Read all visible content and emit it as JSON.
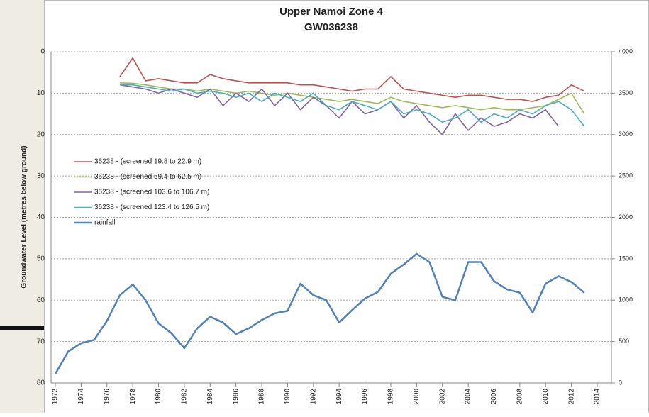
{
  "chart_data": {
    "type": "line",
    "title": [
      "Upper Namoi Zone 4",
      "GW036238"
    ],
    "y_label": "Groundwater Level (metres below ground)",
    "xlim": [
      1972,
      2014
    ],
    "xticks": [
      1972,
      1974,
      1976,
      1978,
      1980,
      1982,
      1984,
      1986,
      1988,
      1990,
      1992,
      1994,
      1996,
      1998,
      2000,
      2002,
      2004,
      2006,
      2008,
      2010,
      2012,
      2014
    ],
    "ylim": [
      80,
      0
    ],
    "yticks": [
      0,
      10,
      20,
      30,
      40,
      50,
      60,
      70,
      80
    ],
    "y2lim": [
      0,
      4000
    ],
    "y2ticks": [
      0,
      500,
      1000,
      1500,
      2000,
      2500,
      3000,
      3500,
      4000
    ],
    "grid": true,
    "legend": "left",
    "series": [
      {
        "name": "36238 - (screened 19.8 to 22.9 m)",
        "color": "#c0504d",
        "x": [
          1977,
          1978,
          1979,
          1980,
          1981,
          1982,
          1983,
          1984,
          1985,
          1986,
          1987,
          1988,
          1989,
          1990,
          1991,
          1992,
          1993,
          1994,
          1995,
          1996,
          1997,
          1998,
          1999,
          2000,
          2001,
          2002,
          2003,
          2004,
          2005,
          2006,
          2007,
          2008,
          2009,
          2010,
          2011,
          2012,
          2013
        ],
        "values": [
          6,
          1.5,
          7,
          6.5,
          7,
          7.5,
          7.5,
          5.5,
          6.5,
          7,
          7.5,
          7.5,
          7.5,
          7.5,
          8,
          8,
          8.5,
          9,
          9.5,
          9,
          9,
          6,
          9,
          9.5,
          10,
          10.5,
          11,
          10.5,
          10.5,
          11,
          11.5,
          11.5,
          12,
          11,
          10.5,
          8,
          9.5
        ]
      },
      {
        "name": "36238 - (screened 59.4 to 62.5 m)",
        "color": "#9bbb59",
        "x": [
          1977,
          1978,
          1979,
          1980,
          1981,
          1982,
          1983,
          1984,
          1985,
          1986,
          1987,
          1988,
          1989,
          1990,
          1991,
          1992,
          1993,
          1994,
          1995,
          1996,
          1997,
          1998,
          1999,
          2000,
          2001,
          2002,
          2003,
          2004,
          2005,
          2006,
          2007,
          2008,
          2009,
          2010,
          2011,
          2012,
          2013
        ],
        "values": [
          7.5,
          7.6,
          8,
          8.5,
          9,
          9,
          9.5,
          9,
          9.5,
          10,
          9.5,
          10,
          10.5,
          10,
          10.5,
          11,
          11.5,
          12,
          11.5,
          12,
          12.5,
          11,
          12,
          12.5,
          13,
          13.5,
          13,
          13.5,
          14,
          13.5,
          14,
          14,
          13.5,
          13,
          11.5,
          10,
          15
        ]
      },
      {
        "name": "36238 - (screened 103.6 to 106.7 m)",
        "color": "#8064a2",
        "x": [
          1977,
          1978,
          1979,
          1980,
          1981,
          1982,
          1983,
          1984,
          1985,
          1986,
          1987,
          1988,
          1989,
          1990,
          1991,
          1992,
          1993,
          1994,
          1995,
          1996,
          1997,
          1998,
          1999,
          2000,
          2001,
          2002,
          2003,
          2004,
          2005,
          2006,
          2007,
          2008,
          2009,
          2010,
          2011
        ],
        "values": [
          8,
          8.5,
          9,
          10,
          9,
          10,
          11,
          9,
          13,
          10,
          12,
          9,
          13,
          10,
          14,
          11,
          13,
          16,
          12,
          15,
          14,
          12,
          16,
          13,
          17,
          20,
          15,
          19,
          16,
          18,
          17,
          15,
          16,
          14,
          18
        ]
      },
      {
        "name": "36238 - (screened 123.4 to 126.5 m)",
        "color": "#4bacc6",
        "x": [
          1977,
          1978,
          1979,
          1980,
          1981,
          1982,
          1983,
          1984,
          1985,
          1986,
          1987,
          1988,
          1989,
          1990,
          1991,
          1992,
          1993,
          1994,
          1995,
          1996,
          1997,
          1998,
          1999,
          2000,
          2001,
          2002,
          2003,
          2004,
          2005,
          2006,
          2007,
          2008,
          2009,
          2010,
          2011,
          2012,
          2013
        ],
        "values": [
          8,
          8,
          8.5,
          9,
          9.5,
          9,
          10,
          9.5,
          10,
          11,
          10,
          12,
          10,
          11,
          12,
          10,
          13,
          14,
          12,
          13,
          14,
          12,
          15,
          14,
          15,
          17,
          16,
          14,
          17,
          15,
          16,
          14,
          15,
          13,
          12,
          14,
          18
        ]
      },
      {
        "name": "rainfall",
        "color": "#4f81bd",
        "axis": "y2",
        "x": [
          1972,
          1973,
          1974,
          1975,
          1976,
          1977,
          1978,
          1979,
          1980,
          1981,
          1982,
          1983,
          1984,
          1985,
          1986,
          1987,
          1988,
          1989,
          1990,
          1991,
          1992,
          1993,
          1994,
          1995,
          1996,
          1997,
          1998,
          1999,
          2000,
          2001,
          2002,
          2003,
          2004,
          2005,
          2006,
          2007,
          2008,
          2009,
          2010,
          2011,
          2012,
          2013
        ],
        "values": [
          110,
          380,
          480,
          520,
          750,
          1060,
          1190,
          1000,
          720,
          600,
          420,
          660,
          800,
          730,
          590,
          660,
          760,
          840,
          870,
          1200,
          1060,
          1000,
          730,
          880,
          1020,
          1100,
          1320,
          1430,
          1560,
          1460,
          1040,
          1000,
          1460,
          1460,
          1230,
          1130,
          1090,
          850,
          1200,
          1290,
          1220,
          1090
        ]
      }
    ]
  }
}
